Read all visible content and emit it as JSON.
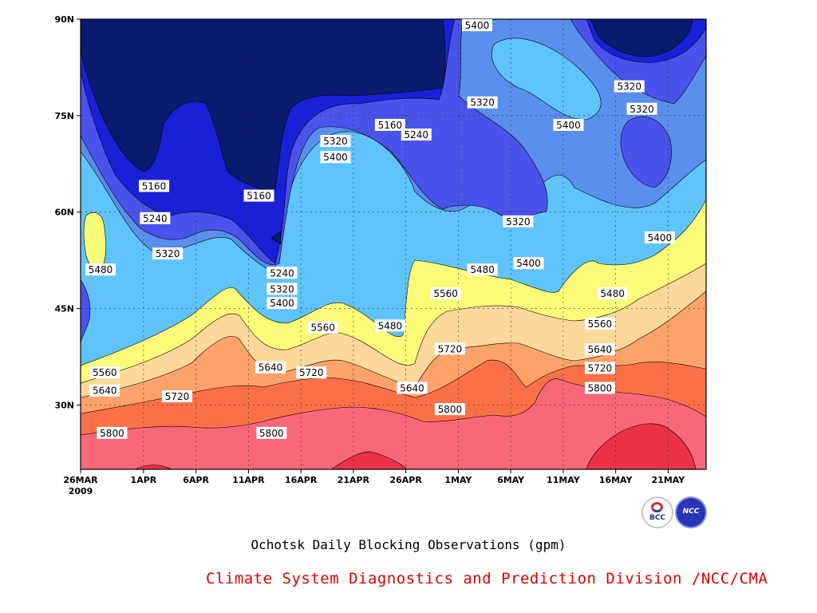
{
  "chart_data": {
    "type": "heatmap",
    "subtype": "filled-contour",
    "title": "Ochotsk Daily Blocking Observations (gpm)",
    "credit": "Climate System Diagnostics and Prediction Division /NCC/CMA",
    "x_ticks": [
      "26MAR",
      "1APR",
      "6APR",
      "11APR",
      "16APR",
      "21APR",
      "26APR",
      "1MAY",
      "6MAY",
      "11MAY",
      "16MAY",
      "21MAY"
    ],
    "x_start_year": "2009",
    "y_ticks": [
      "30N",
      "45N",
      "60N",
      "75N",
      "90N"
    ],
    "y_values": [
      30,
      45,
      60,
      75,
      90
    ],
    "ylim": [
      20,
      90
    ],
    "grid": true,
    "contour_levels": [
      5160,
      5240,
      5320,
      5400,
      5480,
      5560,
      5640,
      5720,
      5800
    ],
    "band_colors": [
      "#0a1a6e",
      "#1a20d8",
      "#4a52ec",
      "#5a8eec",
      "#5fc4fc",
      "#fcfc78",
      "#fcd89a",
      "#fca26a",
      "#fc7048",
      "#f8687a",
      "#ec3048"
    ],
    "contour_labels": [
      {
        "text": "5400",
        "day": 37.8,
        "lat": 89
      },
      {
        "text": "5160",
        "day": 29.5,
        "lat": 73.5
      },
      {
        "text": "5240",
        "day": 32,
        "lat": 72
      },
      {
        "text": "5320",
        "day": 24.3,
        "lat": 71
      },
      {
        "text": "5400",
        "day": 24.3,
        "lat": 68.5
      },
      {
        "text": "5320",
        "day": 38.3,
        "lat": 77
      },
      {
        "text": "5400",
        "day": 46.5,
        "lat": 73.5
      },
      {
        "text": "5320",
        "day": 52.3,
        "lat": 79.5
      },
      {
        "text": "5320",
        "day": 53.5,
        "lat": 76
      },
      {
        "text": "5160",
        "day": 7,
        "lat": 64
      },
      {
        "text": "5160",
        "day": 17,
        "lat": 62.5
      },
      {
        "text": "5240",
        "day": 7.1,
        "lat": 59
      },
      {
        "text": "5320",
        "day": 8.3,
        "lat": 53.5
      },
      {
        "text": "5320",
        "day": 41.7,
        "lat": 58.5
      },
      {
        "text": "5400",
        "day": 55.2,
        "lat": 56
      },
      {
        "text": "5400",
        "day": 42.7,
        "lat": 52
      },
      {
        "text": "5480",
        "day": 1.9,
        "lat": 51
      },
      {
        "text": "5240",
        "day": 19.2,
        "lat": 50.5
      },
      {
        "text": "5320",
        "day": 19.2,
        "lat": 48
      },
      {
        "text": "5400",
        "day": 19.2,
        "lat": 45.8
      },
      {
        "text": "5480",
        "day": 38.3,
        "lat": 51
      },
      {
        "text": "5560",
        "day": 34.8,
        "lat": 47.3
      },
      {
        "text": "5480",
        "day": 50.7,
        "lat": 47.3
      },
      {
        "text": "5560",
        "day": 23.1,
        "lat": 42
      },
      {
        "text": "5480",
        "day": 29.5,
        "lat": 42.3
      },
      {
        "text": "5560",
        "day": 49.5,
        "lat": 42.6
      },
      {
        "text": "5640",
        "day": 18.1,
        "lat": 35.8
      },
      {
        "text": "5720",
        "day": 22,
        "lat": 35
      },
      {
        "text": "5720",
        "day": 35.2,
        "lat": 38.7
      },
      {
        "text": "5640",
        "day": 49.5,
        "lat": 38.6
      },
      {
        "text": "5720",
        "day": 49.5,
        "lat": 35.7
      },
      {
        "text": "5560",
        "day": 2.3,
        "lat": 35
      },
      {
        "text": "5640",
        "day": 2.3,
        "lat": 32.2
      },
      {
        "text": "5720",
        "day": 9.2,
        "lat": 31.3
      },
      {
        "text": "5640",
        "day": 31.6,
        "lat": 32.6
      },
      {
        "text": "5800",
        "day": 35.2,
        "lat": 29.3
      },
      {
        "text": "5800",
        "day": 49.5,
        "lat": 32.6
      },
      {
        "text": "5800",
        "day": 3,
        "lat": 25.6
      },
      {
        "text": "5800",
        "day": 18.2,
        "lat": 25.6
      }
    ]
  },
  "logos": {
    "bcc": {
      "text": "BCC"
    },
    "ncc": {
      "text": "NCC"
    }
  }
}
